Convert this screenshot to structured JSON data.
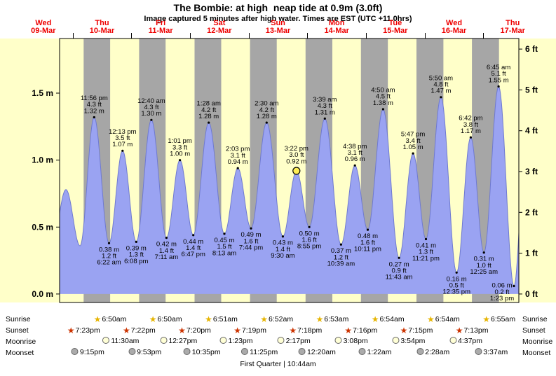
{
  "chart_data": {
    "type": "area",
    "title": "The Bombie: at high  neap tide at 0.9m (3.0ft)",
    "subtitle": "Image captured 5 minutes after high water. Times are EST (UTC +11.0hrs)",
    "legend_position": "none",
    "grid": false,
    "time_range_hours": [
      9,
      207.5
    ],
    "ylim_m": [
      -0.063,
      1.908
    ],
    "days": [
      {
        "name": "Wed",
        "date": "09-Mar"
      },
      {
        "name": "Thu",
        "date": "10-Mar"
      },
      {
        "name": "Fri",
        "date": "11-Mar"
      },
      {
        "name": "Sat",
        "date": "12-Mar"
      },
      {
        "name": "Sun",
        "date": "13-Mar"
      },
      {
        "name": "Mon",
        "date": "14-Mar"
      },
      {
        "name": "Tue",
        "date": "15-Mar"
      },
      {
        "name": "Wed",
        "date": "16-Mar"
      },
      {
        "name": "Thu",
        "date": "17-Mar"
      }
    ],
    "y_axis_left": {
      "unit": "m",
      "labels": [
        "0.0 m",
        "0.5 m",
        "1.0 m",
        "1.5 m"
      ],
      "values": [
        0,
        0.5,
        1.0,
        1.5
      ]
    },
    "y_axis_right": {
      "unit": "ft",
      "labels": [
        "0 ft",
        "1 ft",
        "2 ft",
        "3 ft",
        "4 ft",
        "5 ft",
        "6 ft"
      ],
      "values_ft": [
        0,
        1,
        2,
        3,
        4,
        5,
        6
      ]
    },
    "night_bands": [
      [
        19.383,
        30.833
      ],
      [
        43.367,
        54.833
      ],
      [
        67.333,
        78.85
      ],
      [
        91.317,
        102.867
      ],
      [
        115.3,
        126.883
      ],
      [
        139.267,
        150.9
      ],
      [
        163.25,
        174.9
      ],
      [
        187.217,
        198.917
      ]
    ],
    "tide_events": [
      {
        "t": 5.6,
        "height_m": 0.35,
        "kind": "low",
        "labeled": false
      },
      {
        "t": 11.75,
        "height_m": 0.78,
        "kind": "high",
        "labeled": false
      },
      {
        "t": 17.85,
        "height_m": 0.36,
        "kind": "low",
        "labeled": false
      },
      {
        "t": 23.933,
        "height_m": 1.32,
        "kind": "high",
        "labeled": true,
        "time_label": "11:56 pm",
        "ft_label": "4.3 ft",
        "m_label": "1.32 m"
      },
      {
        "t": 30.367,
        "height_m": 0.38,
        "kind": "low",
        "labeled": true,
        "m_label": "0.38 m",
        "ft_label": "1.2 ft",
        "time_label": "6:22 am"
      },
      {
        "t": 36.217,
        "height_m": 1.07,
        "kind": "high",
        "labeled": true,
        "time_label": "12:13 pm",
        "ft_label": "3.5 ft",
        "m_label": "1.07 m"
      },
      {
        "t": 42.133,
        "height_m": 0.39,
        "kind": "low",
        "labeled": true,
        "m_label": "0.39 m",
        "ft_label": "1.3 ft",
        "time_label": "6:08 pm"
      },
      {
        "t": 48.667,
        "height_m": 1.3,
        "kind": "high",
        "labeled": true,
        "time_label": "12:40 am",
        "ft_label": "4.3 ft",
        "m_label": "1.30 m"
      },
      {
        "t": 55.183,
        "height_m": 0.42,
        "kind": "low",
        "labeled": true,
        "m_label": "0.42 m",
        "ft_label": "1.4 ft",
        "time_label": "7:11 am"
      },
      {
        "t": 61.017,
        "height_m": 1.0,
        "kind": "high",
        "labeled": true,
        "time_label": "1:01 pm",
        "ft_label": "3.3 ft",
        "m_label": "1.00 m"
      },
      {
        "t": 66.783,
        "height_m": 0.44,
        "kind": "low",
        "labeled": true,
        "m_label": "0.44 m",
        "ft_label": "1.4 ft",
        "time_label": "6:47 pm"
      },
      {
        "t": 73.467,
        "height_m": 1.28,
        "kind": "high",
        "labeled": true,
        "time_label": "1:28 am",
        "ft_label": "4.2 ft",
        "m_label": "1.28 m"
      },
      {
        "t": 80.217,
        "height_m": 0.45,
        "kind": "low",
        "labeled": true,
        "m_label": "0.45 m",
        "ft_label": "1.5 ft",
        "time_label": "8:13 am"
      },
      {
        "t": 86.05,
        "height_m": 0.94,
        "kind": "high",
        "labeled": true,
        "time_label": "2:03 pm",
        "ft_label": "3.1 ft",
        "m_label": "0.94 m"
      },
      {
        "t": 91.733,
        "height_m": 0.49,
        "kind": "low",
        "labeled": true,
        "m_label": "0.49 m",
        "ft_label": "1.6 ft",
        "time_label": "7:44 pm"
      },
      {
        "t": 98.5,
        "height_m": 1.28,
        "kind": "high",
        "labeled": true,
        "time_label": "2:30 am",
        "ft_label": "4.2 ft",
        "m_label": "1.28 m"
      },
      {
        "t": 105.5,
        "height_m": 0.43,
        "kind": "low",
        "labeled": true,
        "m_label": "0.43 m",
        "ft_label": "1.4 ft",
        "time_label": "9:30 am"
      },
      {
        "t": 111.367,
        "height_m": 0.92,
        "kind": "high",
        "labeled": true,
        "current": true,
        "time_label": "3:22 pm",
        "ft_label": "3.0 ft",
        "m_label": "0.92 m"
      },
      {
        "t": 116.917,
        "height_m": 0.5,
        "kind": "low",
        "labeled": true,
        "m_label": "0.50 m",
        "ft_label": "1.6 ft",
        "time_label": "8:55 pm"
      },
      {
        "t": 123.65,
        "height_m": 1.31,
        "kind": "high",
        "labeled": true,
        "time_label": "3:39 am",
        "ft_label": "4.3 ft",
        "m_label": "1.31 m"
      },
      {
        "t": 130.65,
        "height_m": 0.37,
        "kind": "low",
        "labeled": true,
        "m_label": "0.37 m",
        "ft_label": "1.2 ft",
        "time_label": "10:39 am"
      },
      {
        "t": 136.633,
        "height_m": 0.96,
        "kind": "high",
        "labeled": true,
        "time_label": "4:38 pm",
        "ft_label": "3.1 ft",
        "m_label": "0.96 m"
      },
      {
        "t": 142.183,
        "height_m": 0.48,
        "kind": "low",
        "labeled": true,
        "m_label": "0.48 m",
        "ft_label": "1.6 ft",
        "time_label": "10:11 pm"
      },
      {
        "t": 148.833,
        "height_m": 1.38,
        "kind": "high",
        "labeled": true,
        "time_label": "4:50 am",
        "ft_label": "4.5 ft",
        "m_label": "1.38 m"
      },
      {
        "t": 155.717,
        "height_m": 0.27,
        "kind": "low",
        "labeled": true,
        "m_label": "0.27 m",
        "ft_label": "0.9 ft",
        "time_label": "11:43 am"
      },
      {
        "t": 161.783,
        "height_m": 1.05,
        "kind": "high",
        "labeled": true,
        "time_label": "5:47 pm",
        "ft_label": "3.4 ft",
        "m_label": "1.05 m"
      },
      {
        "t": 167.35,
        "height_m": 0.41,
        "kind": "low",
        "labeled": true,
        "m_label": "0.41 m",
        "ft_label": "1.3 ft",
        "time_label": "11:21 pm"
      },
      {
        "t": 173.833,
        "height_m": 1.47,
        "kind": "high",
        "labeled": true,
        "time_label": "5:50 am",
        "ft_label": "4.8 ft",
        "m_label": "1.47 m"
      },
      {
        "t": 180.583,
        "height_m": 0.16,
        "kind": "low",
        "labeled": true,
        "m_label": "0.16 m",
        "ft_label": "0.5 ft",
        "time_label": "12:35 pm"
      },
      {
        "t": 186.7,
        "height_m": 1.17,
        "kind": "high",
        "labeled": true,
        "time_label": "6:42 pm",
        "ft_label": "3.8 ft",
        "m_label": "1.17 m"
      },
      {
        "t": 192.417,
        "height_m": 0.31,
        "kind": "low",
        "labeled": true,
        "m_label": "0.31 m",
        "ft_label": "1.0 ft",
        "time_label": "12:25 am"
      },
      {
        "t": 198.75,
        "height_m": 1.55,
        "kind": "high",
        "labeled": true,
        "time_label": "6:45 am",
        "ft_label": "5.1 ft",
        "m_label": "1.55 m"
      },
      {
        "t": 205.383,
        "height_m": 0.06,
        "kind": "low",
        "labeled": true,
        "m_label": "0.06 m",
        "ft_label": "0.2 ft",
        "time_label": "1:23 pm"
      },
      {
        "t": 211.5,
        "height_m": 1.55,
        "kind": "high",
        "labeled": false
      }
    ],
    "astro_rows": [
      {
        "id": "sunrise",
        "label": "Sunrise",
        "icon": "sunrise-star-icon",
        "events": [
          {
            "t": 30.833,
            "time": "6:50am"
          },
          {
            "t": 54.833,
            "time": "6:50am"
          },
          {
            "t": 78.85,
            "time": "6:51am"
          },
          {
            "t": 102.867,
            "time": "6:52am"
          },
          {
            "t": 126.883,
            "time": "6:53am"
          },
          {
            "t": 150.9,
            "time": "6:54am"
          },
          {
            "t": 174.9,
            "time": "6:54am"
          },
          {
            "t": 198.917,
            "time": "6:55am"
          }
        ]
      },
      {
        "id": "sunset",
        "label": "Sunset",
        "icon": "sunset-star-icon",
        "events": [
          {
            "t": 19.383,
            "time": "7:23pm"
          },
          {
            "t": 43.367,
            "time": "7:22pm"
          },
          {
            "t": 67.333,
            "time": "7:20pm"
          },
          {
            "t": 91.317,
            "time": "7:19pm"
          },
          {
            "t": 115.3,
            "time": "7:18pm"
          },
          {
            "t": 139.267,
            "time": "7:16pm"
          },
          {
            "t": 163.25,
            "time": "7:15pm"
          },
          {
            "t": 187.217,
            "time": "7:13pm"
          }
        ]
      },
      {
        "id": "moonrise",
        "label": "Moonrise",
        "icon": "moonrise-icon",
        "events": [
          {
            "t": 35.5,
            "time": "11:30am"
          },
          {
            "t": 60.45,
            "time": "12:27pm"
          },
          {
            "t": 85.383,
            "time": "1:23pm"
          },
          {
            "t": 110.283,
            "time": "2:17pm"
          },
          {
            "t": 135.133,
            "time": "3:08pm"
          },
          {
            "t": 159.9,
            "time": "3:54pm"
          },
          {
            "t": 184.617,
            "time": "4:37pm"
          }
        ]
      },
      {
        "id": "moonset",
        "label": "Moonset",
        "icon": "moonset-icon",
        "events": [
          {
            "t": 21.25,
            "time": "9:15pm"
          },
          {
            "t": 45.883,
            "time": "9:53pm"
          },
          {
            "t": 70.583,
            "time": "10:35pm"
          },
          {
            "t": 95.417,
            "time": "11:25pm"
          },
          {
            "t": 120.333,
            "time": "12:20am"
          },
          {
            "t": 145.367,
            "time": "1:22am"
          },
          {
            "t": 170.467,
            "time": "2:28am"
          },
          {
            "t": 195.617,
            "time": "3:37am"
          }
        ]
      }
    ],
    "moon_phase_note": "First Quarter | 10:44am",
    "colors": {
      "day_background": "#ffffc9",
      "night_band": "#a6a6a6",
      "tide_fill": "#9aa3f2",
      "tide_line": "#6f7ad0",
      "plot_border": "#000000",
      "day_label": "#ee0000",
      "annotation": "#000000",
      "current_marker_fill": "#ffee55",
      "sunrise_star": "#e6b400",
      "sunset_star": "#cc3300",
      "moonrise_fill": "#ffffd6",
      "moonset_fill": "#ababab"
    }
  }
}
